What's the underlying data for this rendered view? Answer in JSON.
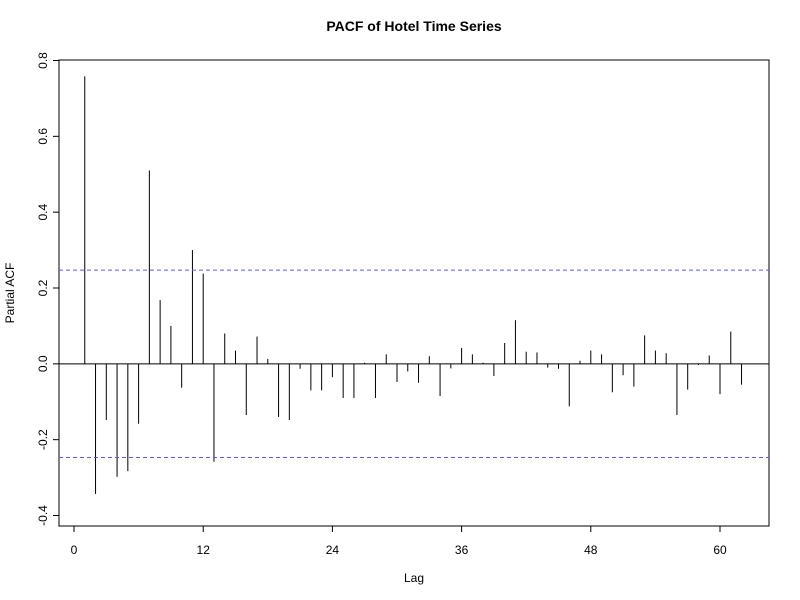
{
  "chart_data": {
    "type": "bar",
    "title": "PACF of Hotel Time Series",
    "xlabel": "Lag",
    "ylabel": "Partial ACF",
    "xlim": [
      -0.5,
      64.5
    ],
    "ylim": [
      -0.42,
      0.8
    ],
    "xticks": [
      0,
      12,
      24,
      36,
      48,
      60
    ],
    "yticks": [
      -0.4,
      -0.2,
      0.0,
      0.2,
      0.4,
      0.6,
      0.8
    ],
    "ytick_labels": [
      "-0.4",
      "-0.2",
      "0.0",
      "0.2",
      "0.4",
      "0.6",
      "0.8"
    ],
    "lags": [
      1,
      2,
      3,
      4,
      5,
      6,
      7,
      8,
      9,
      10,
      11,
      12,
      13,
      14,
      15,
      16,
      17,
      18,
      19,
      20,
      21,
      22,
      23,
      24,
      25,
      26,
      27,
      28,
      29,
      30,
      31,
      32,
      33,
      34,
      35,
      36,
      37,
      38,
      39,
      40,
      41,
      42,
      43,
      44,
      45,
      46,
      47,
      48,
      49,
      50,
      51,
      52,
      53,
      54,
      55,
      56,
      57,
      58,
      59,
      60,
      61,
      62
    ],
    "values": [
      0.758,
      -0.343,
      -0.148,
      -0.298,
      -0.283,
      -0.158,
      0.51,
      0.168,
      0.1,
      -0.063,
      0.3,
      0.238,
      -0.258,
      0.08,
      0.035,
      -0.135,
      0.072,
      0.013,
      -0.14,
      -0.148,
      -0.013,
      -0.07,
      -0.07,
      -0.035,
      -0.09,
      -0.09,
      0.003,
      -0.09,
      0.025,
      -0.048,
      -0.02,
      -0.05,
      0.02,
      -0.085,
      -0.012,
      0.042,
      0.025,
      0.003,
      -0.032,
      0.055,
      0.115,
      0.032,
      0.03,
      -0.01,
      -0.013,
      -0.112,
      0.008,
      0.035,
      0.025,
      -0.075,
      -0.03,
      -0.06,
      0.075,
      0.035,
      0.028,
      -0.135,
      -0.068,
      -0.003,
      0.022,
      -0.08,
      0.085,
      -0.055
    ],
    "confidence_bound": 0.247,
    "confidence_color": "#5b5bff",
    "grid": false
  }
}
